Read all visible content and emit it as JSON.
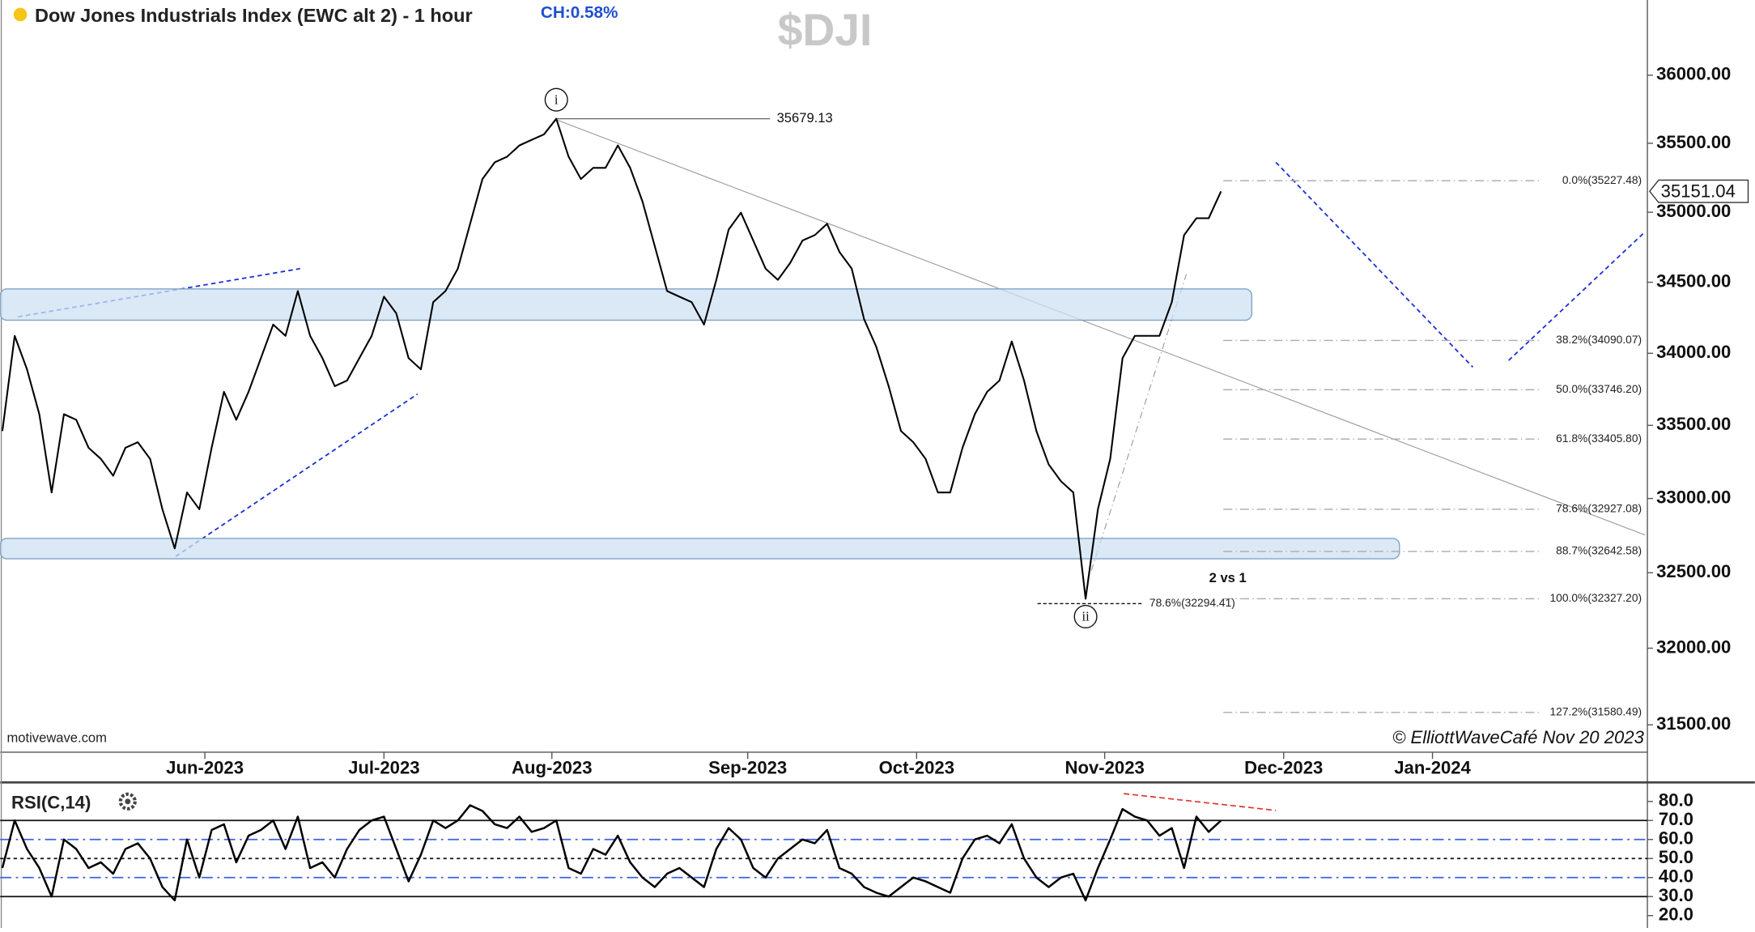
{
  "chart_data": [
    {
      "type": "line",
      "title": "Dow Jones Industrials Index (EWC alt 2) - 1 hour",
      "change": "CH:0.58%",
      "symbol": "$DJI",
      "source": "motivewave.com",
      "copyright": "© ElliottWaveCafé Nov 20 2023",
      "log_scale": true,
      "color": "#000000",
      "values": [
        33461,
        34122,
        33888,
        33577,
        33041,
        33577,
        33538,
        33346,
        33270,
        33155,
        33346,
        33384,
        33270,
        32927,
        32663,
        33041,
        32927,
        33346,
        33732,
        33538,
        33732,
        33966,
        34201,
        34122,
        34438,
        34122,
        33966,
        33771,
        33810,
        33966,
        34122,
        34398,
        34280,
        33966,
        33888,
        34359,
        34438,
        34597,
        34917,
        35240,
        35361,
        35402,
        35484,
        35525,
        35565,
        35679.13,
        35402,
        35240,
        35321,
        35321,
        35484,
        35321,
        35078,
        34757,
        34438,
        34398,
        34359,
        34201,
        34517,
        34876,
        34997,
        34797,
        34597,
        34517,
        34637,
        34797,
        34836,
        34917,
        34716,
        34597,
        34240,
        34044,
        33771,
        33461,
        33384,
        33270,
        33041,
        33041,
        33346,
        33577,
        33732,
        33810,
        34083,
        33810,
        33461,
        33232,
        33117,
        33041,
        32327,
        32927,
        33270,
        33966,
        34122,
        34122,
        34122,
        34359,
        34836,
        34957,
        34957,
        35151.04
      ],
      "xlim": [
        -0.18,
        133.64
      ],
      "xticks": [
        {
          "value": 16.45,
          "label": "Jun-2023"
        },
        {
          "value": 31,
          "label": "Jul-2023"
        },
        {
          "value": 44.64,
          "label": "Aug-2023"
        },
        {
          "value": 60.55,
          "label": "Sep-2023"
        },
        {
          "value": 74.27,
          "label": "Oct-2023"
        },
        {
          "value": 89.55,
          "label": "Nov-2023"
        },
        {
          "value": 104.09,
          "label": "Dec-2023"
        },
        {
          "value": 116.18,
          "label": "Jan-2024"
        }
      ],
      "ylim": [
        31323,
        36561
      ],
      "yticks": [
        {
          "value": 31500,
          "label": "31500.00"
        },
        {
          "value": 32000,
          "label": "32000.00"
        },
        {
          "value": 32500,
          "label": "32500.00"
        },
        {
          "value": 33000,
          "label": "33000.00"
        },
        {
          "value": 33500,
          "label": "33500.00"
        },
        {
          "value": 34000,
          "label": "34000.00"
        },
        {
          "value": 34500,
          "label": "34500.00"
        },
        {
          "value": 35000,
          "label": "35000.00"
        },
        {
          "value": 35500,
          "label": "35500.00"
        },
        {
          "value": 36000,
          "label": "36000.00"
        }
      ],
      "levels": [
        {
          "value": 35227.48,
          "label": "0.0%(35227.48)"
        },
        {
          "value": 34090.07,
          "label": "38.2%(34090.07)"
        },
        {
          "value": 33746.2,
          "label": "50.0%(33746.20)"
        },
        {
          "value": 33405.8,
          "label": "61.8%(33405.80)"
        },
        {
          "value": 32927.08,
          "label": "78.6%(32927.08)"
        },
        {
          "value": 32642.58,
          "label": "88.7%(32642.58)"
        },
        {
          "value": 32327.2,
          "label": "100.0%(32327.20)"
        },
        {
          "value": 31580.49,
          "label": "127.2%(31580.49)"
        }
      ],
      "extension": {
        "value": 32294.41,
        "label": "78.6%(32294.41)"
      },
      "zones": [
        {
          "from": 34232,
          "to": 34453,
          "xlim": [
            -0.18,
            101.5
          ]
        },
        {
          "from": 32594,
          "to": 32730,
          "xlim": [
            -0.18,
            113.5
          ]
        }
      ],
      "wave_labels": [
        {
          "label": "i",
          "index": 45
        },
        {
          "label": "ii",
          "index": 88
        }
      ],
      "annotation": "2 vs 1"
    },
    {
      "type": "line",
      "title": "RSI(C,14)",
      "color": "#000000",
      "values": [
        45,
        70,
        55,
        45,
        30,
        60,
        55,
        45,
        48,
        42,
        55,
        58,
        50,
        35,
        28,
        60,
        40,
        65,
        68,
        48,
        62,
        65,
        70,
        55,
        72,
        45,
        48,
        40,
        55,
        65,
        70,
        72,
        55,
        38,
        52,
        70,
        66,
        70,
        78,
        75,
        68,
        66,
        72,
        64,
        66,
        70,
        45,
        42,
        55,
        52,
        62,
        48,
        40,
        35,
        42,
        45,
        40,
        35,
        55,
        66,
        60,
        45,
        40,
        50,
        55,
        60,
        58,
        65,
        45,
        42,
        35,
        32,
        30,
        35,
        40,
        38,
        35,
        32,
        50,
        60,
        62,
        58,
        68,
        50,
        40,
        35,
        40,
        42,
        28,
        45,
        60,
        76,
        72,
        70,
        62,
        66,
        45,
        72,
        64,
        70
      ],
      "ylim": [
        13.5,
        89.4
      ],
      "yticks": [
        {
          "value": 20,
          "label": "20.0"
        },
        {
          "value": 30,
          "label": "30.0"
        },
        {
          "value": 40,
          "label": "40.0"
        },
        {
          "value": 50,
          "label": "50.0"
        },
        {
          "value": 60,
          "label": "60.0"
        },
        {
          "value": 70,
          "label": "70.0"
        },
        {
          "value": 80,
          "label": "80.0"
        }
      ]
    }
  ]
}
